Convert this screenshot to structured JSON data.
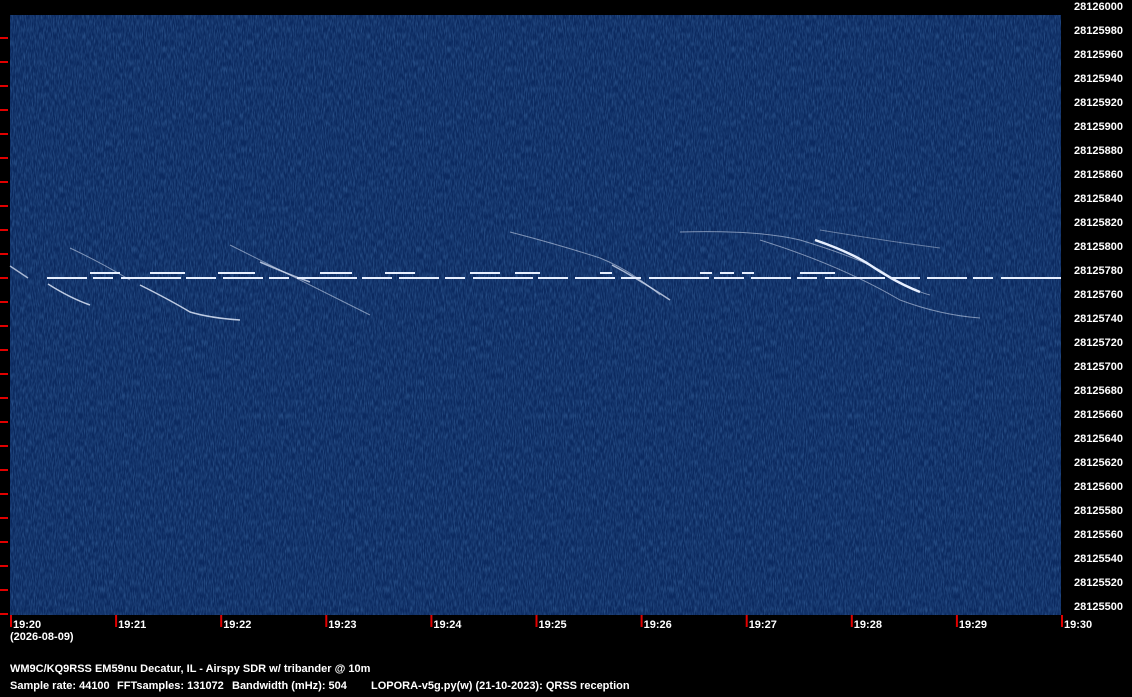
{
  "frequency_labels": [
    "28126000",
    "28125980",
    "28125960",
    "28125940",
    "28125920",
    "28125900",
    "28125880",
    "28125860",
    "28125840",
    "28125820",
    "28125800",
    "28125780",
    "28125760",
    "28125740",
    "28125720",
    "28125700",
    "28125680",
    "28125660",
    "28125640",
    "28125620",
    "28125600",
    "28125580",
    "28125560",
    "28125540",
    "28125520",
    "28125500"
  ],
  "time_labels": [
    "19:20",
    "19:21",
    "19:22",
    "19:23",
    "19:24",
    "19:25",
    "19:26",
    "19:27",
    "19:28",
    "19:29",
    "19:30"
  ],
  "date": "(2026-08-09)",
  "footer": {
    "station": "WM9C/KQ9RSS EM59nu Decatur, IL - Airspy SDR w/ tribander @ 10m",
    "details": [
      "Sample rate: 44100",
      "FFTsamples: 131072",
      "Bandwidth (mHz): 504",
      "LOPORA-v5g.py(w) (21-10-2023): QRSS reception"
    ]
  }
}
